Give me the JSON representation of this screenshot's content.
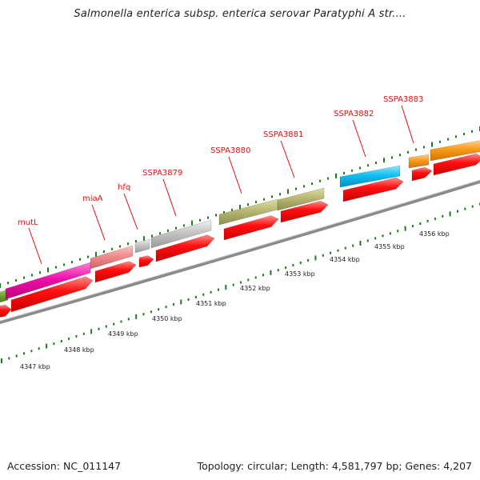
{
  "title": "Salmonella enterica subsp. enterica serovar Paratyphi A str....",
  "footer": {
    "accession": "Accession: NC_011147",
    "summary": "Topology: circular; Length: 4,581,797 bp; Genes: 4,207"
  },
  "colors": {
    "label_red": "#dd1111",
    "tick_green": "#1e7a1e",
    "cds_red": "#ff0000",
    "backbone_gray": "#8c8c8c"
  },
  "gene_labels": [
    "mutL",
    "miaA",
    "hfq",
    "SSPA3879",
    "SSPA3880",
    "SSPA3881",
    "SSPA3882",
    "SSPA3883"
  ],
  "scale_labels": [
    "4347 kbp",
    "4348 kbp",
    "4349 kbp",
    "4350 kbp",
    "4351 kbp",
    "4352 kbp",
    "4353 kbp",
    "4354 kbp",
    "4355 kbp",
    "4356 kbp"
  ]
}
